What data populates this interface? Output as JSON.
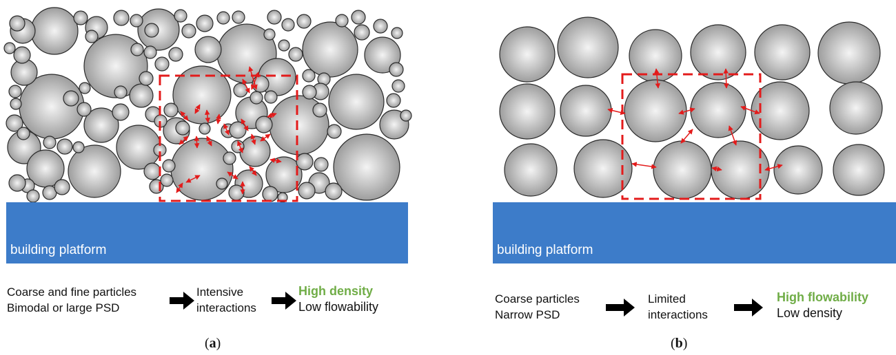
{
  "panel_a": {
    "platform_label": "building platform",
    "step1_line1": "Coarse and fine particles",
    "step1_line2": "Bimodal or large PSD",
    "step2_line1": "Intensive",
    "step2_line2": "interactions",
    "result_good": "High density",
    "result_bad": "Low flowability",
    "caption_letter": "a"
  },
  "panel_b": {
    "platform_label": "building platform",
    "step1_line1": "Coarse particles",
    "step1_line2": "Narrow PSD",
    "step2_line1": "Limited",
    "step2_line2": "interactions",
    "result_good": "High flowability",
    "result_bad": "Low density",
    "caption_letter": "b"
  },
  "colors": {
    "platform": "#3d7cc9",
    "highlight_box": "#e31b1b",
    "good_result": "#70ad47",
    "particle": "#a9a9a9"
  }
}
